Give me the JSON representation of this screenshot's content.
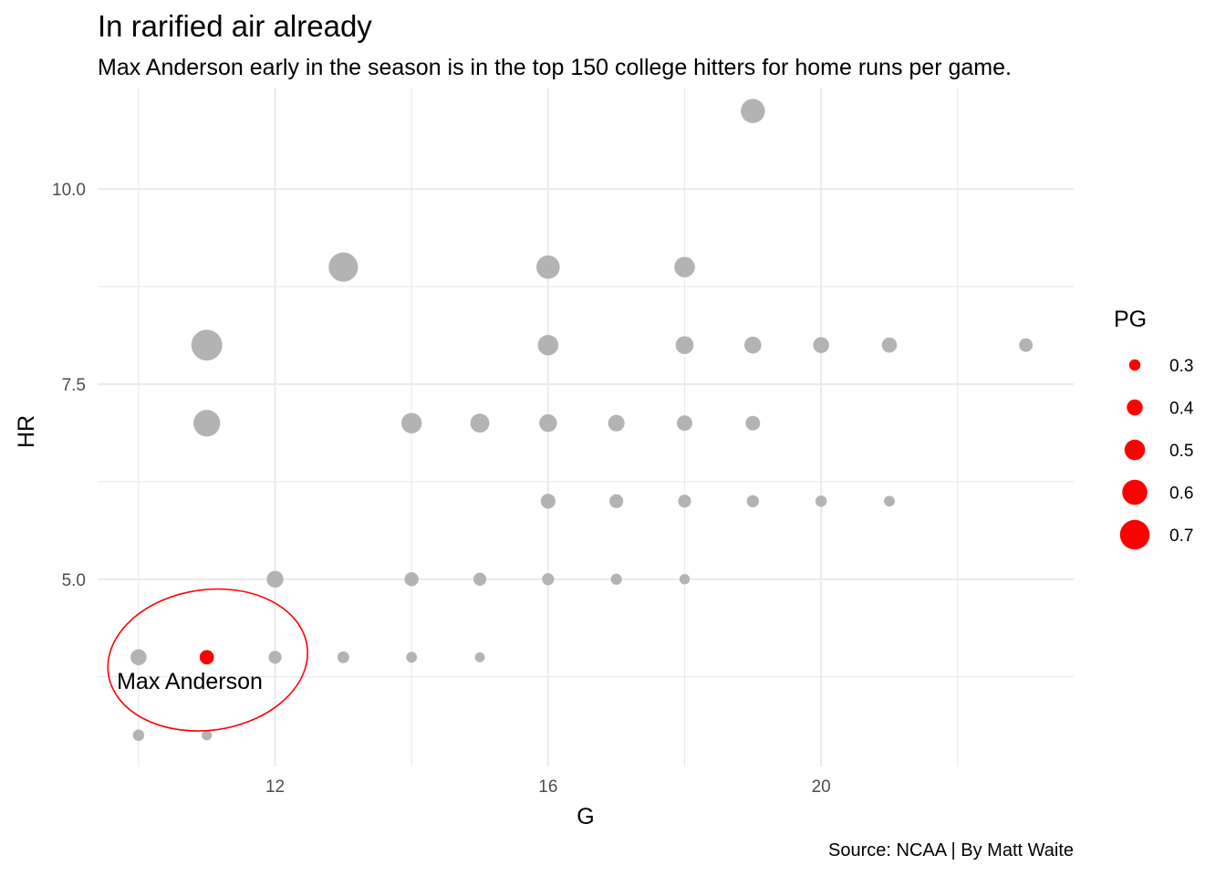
{
  "title": "In rarified air already",
  "subtitle": "Max Anderson early in the season is in the top 150 college hitters for home runs per game.",
  "caption": "Source: NCAA | By Matt Waite",
  "colors": {
    "highlight": "#ff0000",
    "points": "#b3b3b3",
    "grid": "#ebebeb",
    "annotation_ellipse": "#ff0000"
  },
  "chart_data": {
    "type": "scatter",
    "xlabel": "G",
    "ylabel": "HR",
    "xlim": [
      9.4,
      23.7
    ],
    "ylim": [
      2.6,
      11.3
    ],
    "x_major_ticks": [
      12,
      16,
      20
    ],
    "x_minor_ticks": [
      10,
      14,
      18,
      22
    ],
    "y_major_ticks": [
      5.0,
      7.5,
      10.0
    ],
    "y_minor_ticks": [
      3.75,
      6.25,
      8.75
    ],
    "y_tick_labels": [
      "5.0",
      "7.5",
      "10.0"
    ],
    "x_tick_labels": [
      "12",
      "16",
      "20"
    ],
    "grid": true,
    "size_variable": "PG",
    "size_range": [
      0.25,
      0.75
    ],
    "legend": {
      "title": "PG",
      "position": "right",
      "entries": [
        {
          "label": "0.3",
          "value": 0.3
        },
        {
          "label": "0.4",
          "value": 0.4
        },
        {
          "label": "0.5",
          "value": 0.5
        },
        {
          "label": "0.6",
          "value": 0.6
        },
        {
          "label": "0.7",
          "value": 0.7
        }
      ]
    },
    "points": [
      {
        "g": 19,
        "hr": 11,
        "pg": 0.579
      },
      {
        "g": 13,
        "hr": 9,
        "pg": 0.692
      },
      {
        "g": 16,
        "hr": 9,
        "pg": 0.563
      },
      {
        "g": 18,
        "hr": 9,
        "pg": 0.5
      },
      {
        "g": 11,
        "hr": 8,
        "pg": 0.727
      },
      {
        "g": 16,
        "hr": 8,
        "pg": 0.5
      },
      {
        "g": 18,
        "hr": 8,
        "pg": 0.444
      },
      {
        "g": 19,
        "hr": 8,
        "pg": 0.421
      },
      {
        "g": 20,
        "hr": 8,
        "pg": 0.4
      },
      {
        "g": 21,
        "hr": 8,
        "pg": 0.381
      },
      {
        "g": 23,
        "hr": 8,
        "pg": 0.348
      },
      {
        "g": 11,
        "hr": 7,
        "pg": 0.636
      },
      {
        "g": 14,
        "hr": 7,
        "pg": 0.5
      },
      {
        "g": 15,
        "hr": 7,
        "pg": 0.467
      },
      {
        "g": 16,
        "hr": 7,
        "pg": 0.438
      },
      {
        "g": 17,
        "hr": 7,
        "pg": 0.412
      },
      {
        "g": 18,
        "hr": 7,
        "pg": 0.389
      },
      {
        "g": 19,
        "hr": 7,
        "pg": 0.368
      },
      {
        "g": 16,
        "hr": 6,
        "pg": 0.375
      },
      {
        "g": 17,
        "hr": 6,
        "pg": 0.353
      },
      {
        "g": 18,
        "hr": 6,
        "pg": 0.333
      },
      {
        "g": 19,
        "hr": 6,
        "pg": 0.316
      },
      {
        "g": 20,
        "hr": 6,
        "pg": 0.3
      },
      {
        "g": 21,
        "hr": 6,
        "pg": 0.286
      },
      {
        "g": 12,
        "hr": 5,
        "pg": 0.417
      },
      {
        "g": 14,
        "hr": 5,
        "pg": 0.357
      },
      {
        "g": 15,
        "hr": 5,
        "pg": 0.333
      },
      {
        "g": 16,
        "hr": 5,
        "pg": 0.313
      },
      {
        "g": 17,
        "hr": 5,
        "pg": 0.294
      },
      {
        "g": 18,
        "hr": 5,
        "pg": 0.278
      },
      {
        "g": 10,
        "hr": 4,
        "pg": 0.4
      },
      {
        "g": 11,
        "hr": 4,
        "pg": 0.364,
        "highlight": true
      },
      {
        "g": 12,
        "hr": 4,
        "pg": 0.333
      },
      {
        "g": 13,
        "hr": 4,
        "pg": 0.308
      },
      {
        "g": 14,
        "hr": 4,
        "pg": 0.286
      },
      {
        "g": 15,
        "hr": 4,
        "pg": 0.267
      },
      {
        "g": 10,
        "hr": 3,
        "pg": 0.3
      },
      {
        "g": 11,
        "hr": 3,
        "pg": 0.273
      }
    ],
    "annotation": {
      "label": "Max Anderson",
      "g": 11,
      "hr": 4,
      "label_g": 10.75,
      "label_hr": 3.7
    }
  }
}
